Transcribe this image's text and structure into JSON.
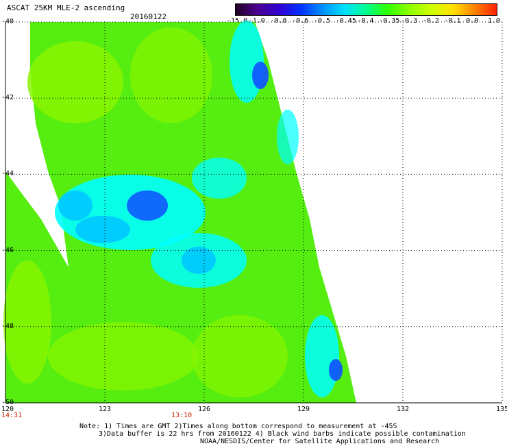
{
  "header": {
    "title": "ASCAT 25KM MLE-2 ascending",
    "date": "20160122"
  },
  "colorbar": {
    "ticks": [
      "-15.0",
      "-1.0",
      "-0.8",
      "-0.6",
      "-0.5",
      "-0.45",
      "-0.4",
      "-0.35",
      "-0.3",
      "-0.2",
      "-0.1",
      "0.0",
      "1.0"
    ],
    "colors": [
      "#200020",
      "#4a0090",
      "#3000d0",
      "#0030ff",
      "#0090ff",
      "#00e0ff",
      "#00ff90",
      "#30ff00",
      "#90ff00",
      "#d0ff00",
      "#ffe000",
      "#ff8000",
      "#ff2000"
    ]
  },
  "axes": {
    "lat_labels": [
      "-40",
      "-42",
      "-44",
      "-46",
      "-48",
      "-50"
    ],
    "lon_labels": [
      "120",
      "123",
      "126",
      "129",
      "132",
      "135"
    ]
  },
  "times": [
    "14:31",
    "13:10"
  ],
  "notes": [
    "Note: 1) Times are GMT 2)Times along bottom correspond to measurement at -45S",
    "3)Data buffer is 22 hrs from 20160122 4) Black wind barbs indicate possible contamination",
    "NOAA/NESDIS/Center for Satellite Applications and Research"
  ],
  "palette": {
    "green": "#55ee10",
    "lime": "#88f500",
    "cyan": "#00ffff",
    "lightblue": "#00c8ff",
    "blue": "#1050ff",
    "darkblue": "#2020d0",
    "purple": "#4010a0",
    "time_color": "#cc2200"
  }
}
